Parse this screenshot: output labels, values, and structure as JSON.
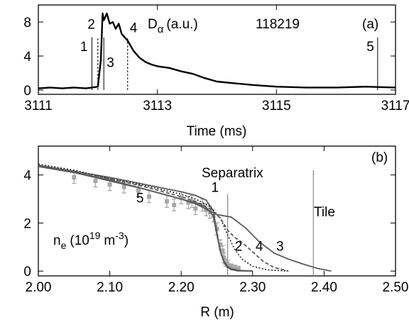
{
  "chart_data": [
    {
      "panel": "(a)",
      "type": "line",
      "title": "",
      "annotation_signal": "D",
      "annotation_signal_sub": "α",
      "annotation_units": "(a.u.)",
      "shot_label": "118219",
      "xlabel": "Time (ms)",
      "ylabel": "",
      "xlim": [
        3111,
        3117
      ],
      "ylim": [
        -0.5,
        10
      ],
      "xticks": [
        "3111",
        "3113",
        "3115",
        "3117"
      ],
      "yticks": [
        "0",
        "4",
        "8"
      ],
      "series": [
        {
          "style": "solid-thick",
          "x": [
            3111.0,
            3111.2,
            3111.4,
            3111.6,
            3111.8,
            3111.9,
            3112.0,
            3112.05,
            3112.08,
            3112.1,
            3112.15,
            3112.2,
            3112.25,
            3112.3,
            3112.35,
            3112.4,
            3112.5,
            3112.6,
            3112.7,
            3112.8,
            3112.9,
            3113.0,
            3113.2,
            3113.4,
            3113.6,
            3113.8,
            3114.0,
            3114.3,
            3114.6,
            3115.0,
            3115.5,
            3116.0,
            3116.5,
            3117.0
          ],
          "y": [
            0.2,
            0.3,
            0.2,
            0.3,
            0.2,
            0.3,
            0.4,
            3.5,
            9.0,
            8.2,
            9.0,
            7.8,
            8.0,
            7.2,
            7.8,
            6.6,
            5.8,
            4.6,
            3.8,
            3.3,
            3.0,
            2.8,
            2.6,
            2.2,
            1.9,
            1.4,
            1.0,
            0.8,
            0.6,
            0.4,
            0.3,
            0.3,
            0.4,
            0.3
          ]
        }
      ],
      "time_markers": [
        {
          "label": "1",
          "x": 3111.9,
          "style": "solid-thin",
          "height": 6.2
        },
        {
          "label": "2",
          "x": 3112.0,
          "style": "dashed",
          "height": 6.2
        },
        {
          "label": "3",
          "x": 3112.1,
          "style": "solid-thin",
          "height": 6.2
        },
        {
          "label": "4",
          "x": 3112.5,
          "style": "dashed",
          "height": 6.2
        },
        {
          "label": "5",
          "x": 3116.7,
          "style": "solid-thin",
          "height": 6.2
        }
      ]
    },
    {
      "panel": "(b)",
      "type": "line",
      "title": "",
      "xlabel": "R (m)",
      "ylabel": "",
      "annotation_base": "n",
      "annotation_sub": "e",
      "annotation_mid": "(10",
      "annotation_sup1": "19",
      "annotation_unit": "m",
      "annotation_sup2": "-3",
      "annotation_end": ")",
      "separatrix_label": "Separatrix",
      "tile_label": "Tile",
      "separatrix_x": 2.265,
      "tile_x": 2.385,
      "xlim": [
        2.0,
        2.5
      ],
      "ylim": [
        -0.2,
        5.2
      ],
      "xticks": [
        "2.00",
        "2.10",
        "2.20",
        "2.30",
        "2.40",
        "2.50"
      ],
      "yticks": [
        "0",
        "2",
        "4"
      ],
      "series": [
        {
          "label": "1",
          "style": "solid",
          "x": [
            2.0,
            2.05,
            2.1,
            2.15,
            2.2,
            2.22,
            2.235,
            2.245,
            2.25,
            2.255,
            2.26,
            2.265,
            2.27,
            2.28,
            2.3
          ],
          "y": [
            4.4,
            4.15,
            3.9,
            3.6,
            3.3,
            3.15,
            2.95,
            2.5,
            1.6,
            0.8,
            0.4,
            0.2,
            0.1,
            0.03,
            0.0
          ]
        },
        {
          "label": "2",
          "style": "dotted",
          "x": [
            2.0,
            2.05,
            2.1,
            2.15,
            2.2,
            2.22,
            2.24,
            2.255,
            2.265,
            2.275,
            2.285,
            2.3,
            2.32,
            2.35
          ],
          "y": [
            4.45,
            4.2,
            3.85,
            3.55,
            3.2,
            3.0,
            2.7,
            2.2,
            1.5,
            0.9,
            0.5,
            0.2,
            0.05,
            0.0
          ]
        },
        {
          "label": "3",
          "style": "solid",
          "x": [
            2.0,
            2.05,
            2.1,
            2.15,
            2.2,
            2.22,
            2.24,
            2.25,
            2.26,
            2.27,
            2.29,
            2.31,
            2.33,
            2.35,
            2.37,
            2.39,
            2.41
          ],
          "y": [
            4.35,
            4.1,
            3.8,
            3.4,
            3.0,
            2.8,
            2.5,
            2.35,
            2.3,
            2.25,
            1.8,
            1.2,
            0.75,
            0.5,
            0.3,
            0.12,
            0.0
          ]
        },
        {
          "label": "4",
          "style": "dashed",
          "x": [
            2.0,
            2.05,
            2.1,
            2.15,
            2.2,
            2.22,
            2.24,
            2.255,
            2.265,
            2.275,
            2.285,
            2.3,
            2.315,
            2.33,
            2.35
          ],
          "y": [
            4.4,
            4.15,
            3.85,
            3.5,
            3.1,
            2.9,
            2.6,
            2.2,
            1.7,
            1.4,
            1.2,
            0.8,
            0.4,
            0.15,
            0.0
          ]
        },
        {
          "label": "5",
          "style": "solid",
          "x": [
            2.0,
            2.05,
            2.1,
            2.15,
            2.2,
            2.22,
            2.235,
            2.245,
            2.25,
            2.255,
            2.26,
            2.265,
            2.27,
            2.28,
            2.3
          ],
          "y": [
            4.35,
            4.1,
            3.75,
            3.4,
            3.0,
            2.85,
            2.65,
            2.3,
            1.5,
            0.8,
            0.35,
            0.15,
            0.06,
            0.01,
            0.0
          ]
        }
      ],
      "measured_points": {
        "x": [
          2.05,
          2.08,
          2.1,
          2.12,
          2.14,
          2.155,
          2.18,
          2.19,
          2.2,
          2.21,
          2.215,
          2.22,
          2.23,
          2.235,
          2.24,
          2.245,
          2.25,
          2.255,
          2.258,
          2.26,
          2.262,
          2.265,
          2.27,
          2.275,
          2.28
        ],
        "y": [
          3.9,
          3.75,
          3.6,
          3.5,
          3.35,
          3.1,
          2.9,
          2.75,
          3.05,
          2.85,
          2.9,
          2.6,
          2.75,
          2.55,
          2.45,
          2.3,
          1.75,
          1.1,
          0.85,
          0.55,
          0.35,
          0.3,
          0.2,
          0.15,
          0.1
        ],
        "yerr": [
          0.25,
          0.25,
          0.25,
          0.25,
          0.25,
          0.25,
          0.25,
          0.25,
          0.25,
          0.25,
          0.25,
          0.25,
          0.25,
          0.25,
          0.25,
          0.25,
          0.25,
          0.2,
          0.2,
          0.2,
          0.15,
          0.15,
          0.1,
          0.1,
          0.1
        ]
      },
      "curve_labels": [
        {
          "label": "1",
          "x": 2.242,
          "y": 3.3
        },
        {
          "label": "2",
          "x": 2.275,
          "y": 0.85
        },
        {
          "label": "3",
          "x": 2.333,
          "y": 0.85
        },
        {
          "label": "4",
          "x": 2.304,
          "y": 0.85
        },
        {
          "label": "5",
          "x": 2.137,
          "y": 2.85
        }
      ],
      "panel_annotation": "(b)"
    }
  ]
}
